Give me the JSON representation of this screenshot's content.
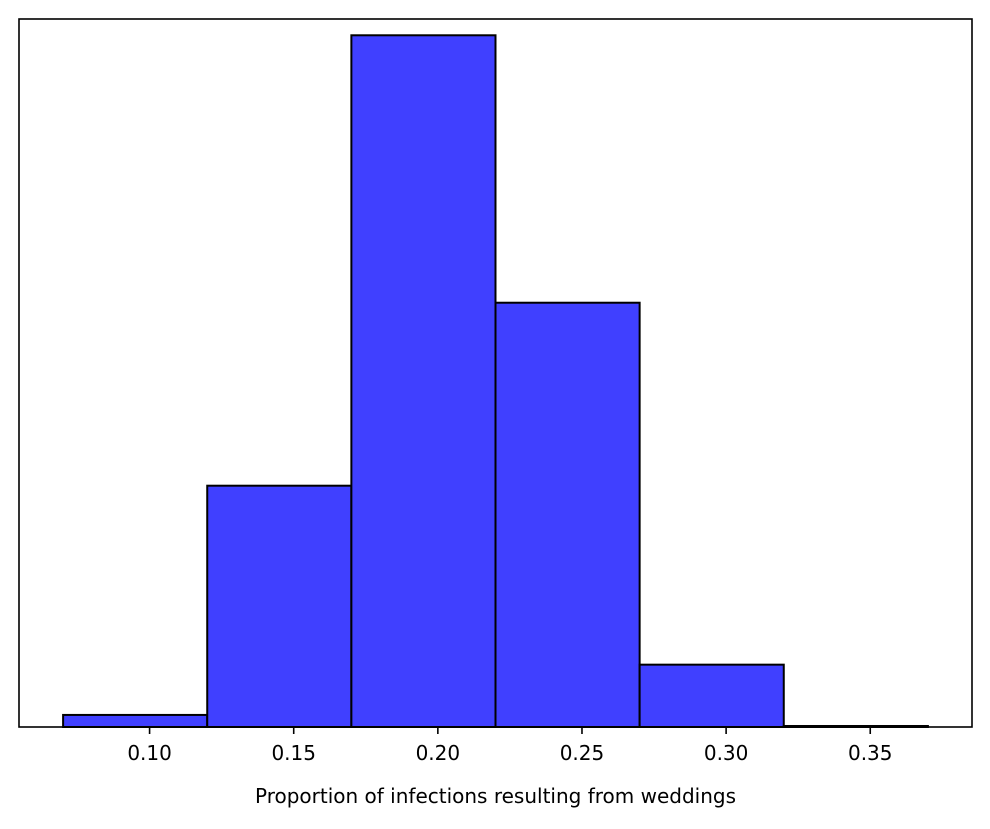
{
  "chart_data": {
    "type": "bar",
    "title": "",
    "xlabel": "Proportion of infections resulting from weddings",
    "ylabel": "",
    "xlim": [
      0.0547,
      0.3853
    ],
    "ylim": [
      0,
      0.3521
    ],
    "x_ticks": [
      "0.10",
      "0.15",
      "0.20",
      "0.25",
      "0.30",
      "0.35"
    ],
    "x_tick_values": [
      0.1,
      0.15,
      0.2,
      0.25,
      0.3,
      0.35
    ],
    "bin_edges": [
      0.07,
      0.12,
      0.17,
      0.22,
      0.27,
      0.32,
      0.37
    ],
    "values": [
      0.006,
      0.12,
      0.344,
      0.211,
      0.031,
      0.0005
    ],
    "y_ticks_visible": false,
    "grid": false,
    "bar_color": "#4040ff",
    "edge_color": "#000000"
  }
}
